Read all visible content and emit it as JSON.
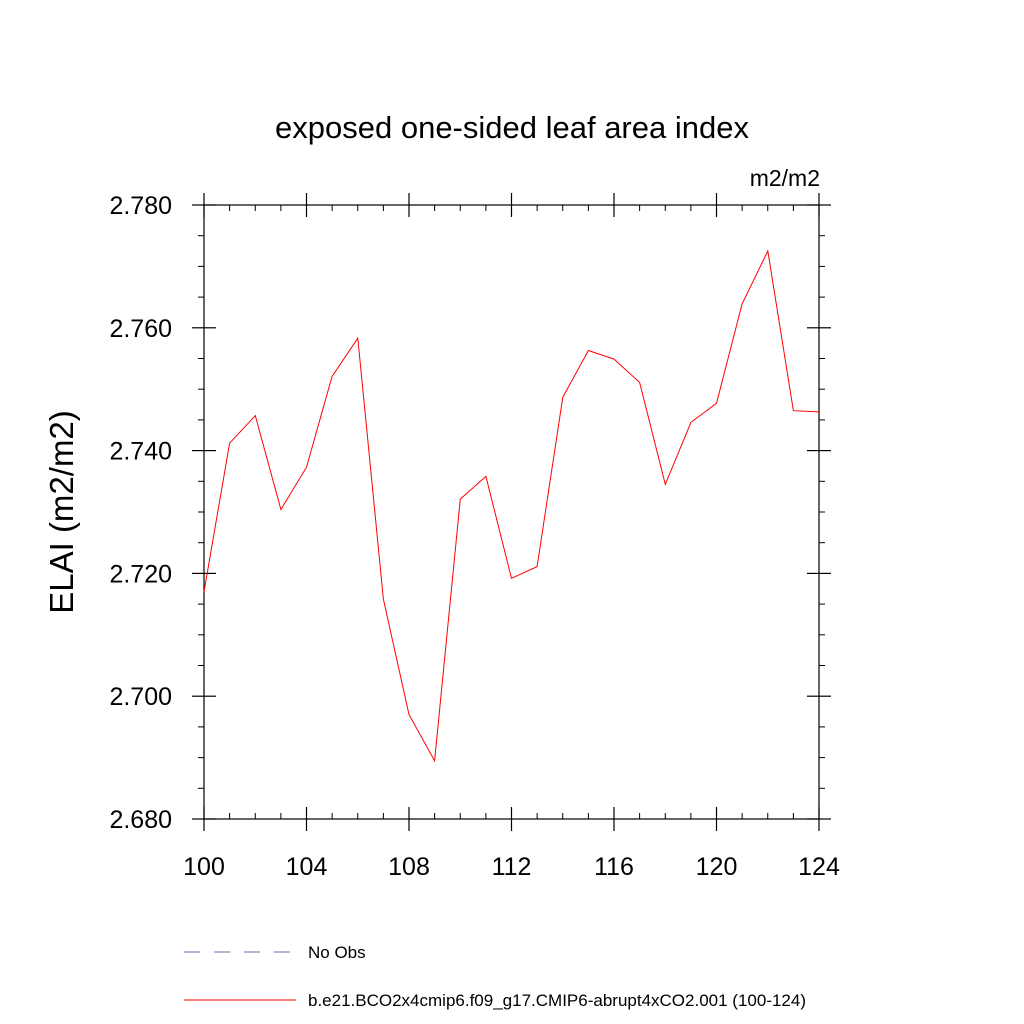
{
  "chart_data": {
    "type": "line",
    "title": "exposed one-sided leaf area index",
    "units": "m2/m2",
    "xlabel": "",
    "ylabel": "ELAI  (m2/m2)",
    "xlim": [
      100,
      124
    ],
    "ylim": [
      2.68,
      2.78
    ],
    "x_ticks": [
      100,
      104,
      108,
      112,
      116,
      120,
      124
    ],
    "y_ticks": [
      "2.680",
      "2.700",
      "2.720",
      "2.740",
      "2.760",
      "2.780"
    ],
    "grid": false,
    "legend_position": "bottom",
    "series": [
      {
        "name": "b.e21.BCO2x4cmip6.f09_g17.CMIP6-abrupt4xCO2.001 (100-124)",
        "color": "#ff0000",
        "style": "solid",
        "x": [
          100,
          101,
          102,
          103,
          104,
          105,
          106,
          107,
          108,
          109,
          110,
          111,
          112,
          113,
          114,
          115,
          116,
          117,
          118,
          119,
          120,
          121,
          122,
          123,
          124
        ],
        "y": [
          2.717,
          2.7412,
          2.7457,
          2.7304,
          2.7373,
          2.7521,
          2.7583,
          2.7158,
          2.697,
          2.6895,
          2.7321,
          2.7358,
          2.7192,
          2.7211,
          2.7487,
          2.7563,
          2.7549,
          2.7511,
          2.7345,
          2.7446,
          2.7477,
          2.7639,
          2.7725,
          2.7465,
          2.7463
        ]
      }
    ],
    "legend": [
      {
        "label": "No Obs",
        "color": "#6a6ab0",
        "style": "dashed"
      },
      {
        "label": "b.e21.BCO2x4cmip6.f09_g17.CMIP6-abrupt4xCO2.001 (100-124)",
        "color": "#ff0000",
        "style": "solid"
      }
    ]
  }
}
